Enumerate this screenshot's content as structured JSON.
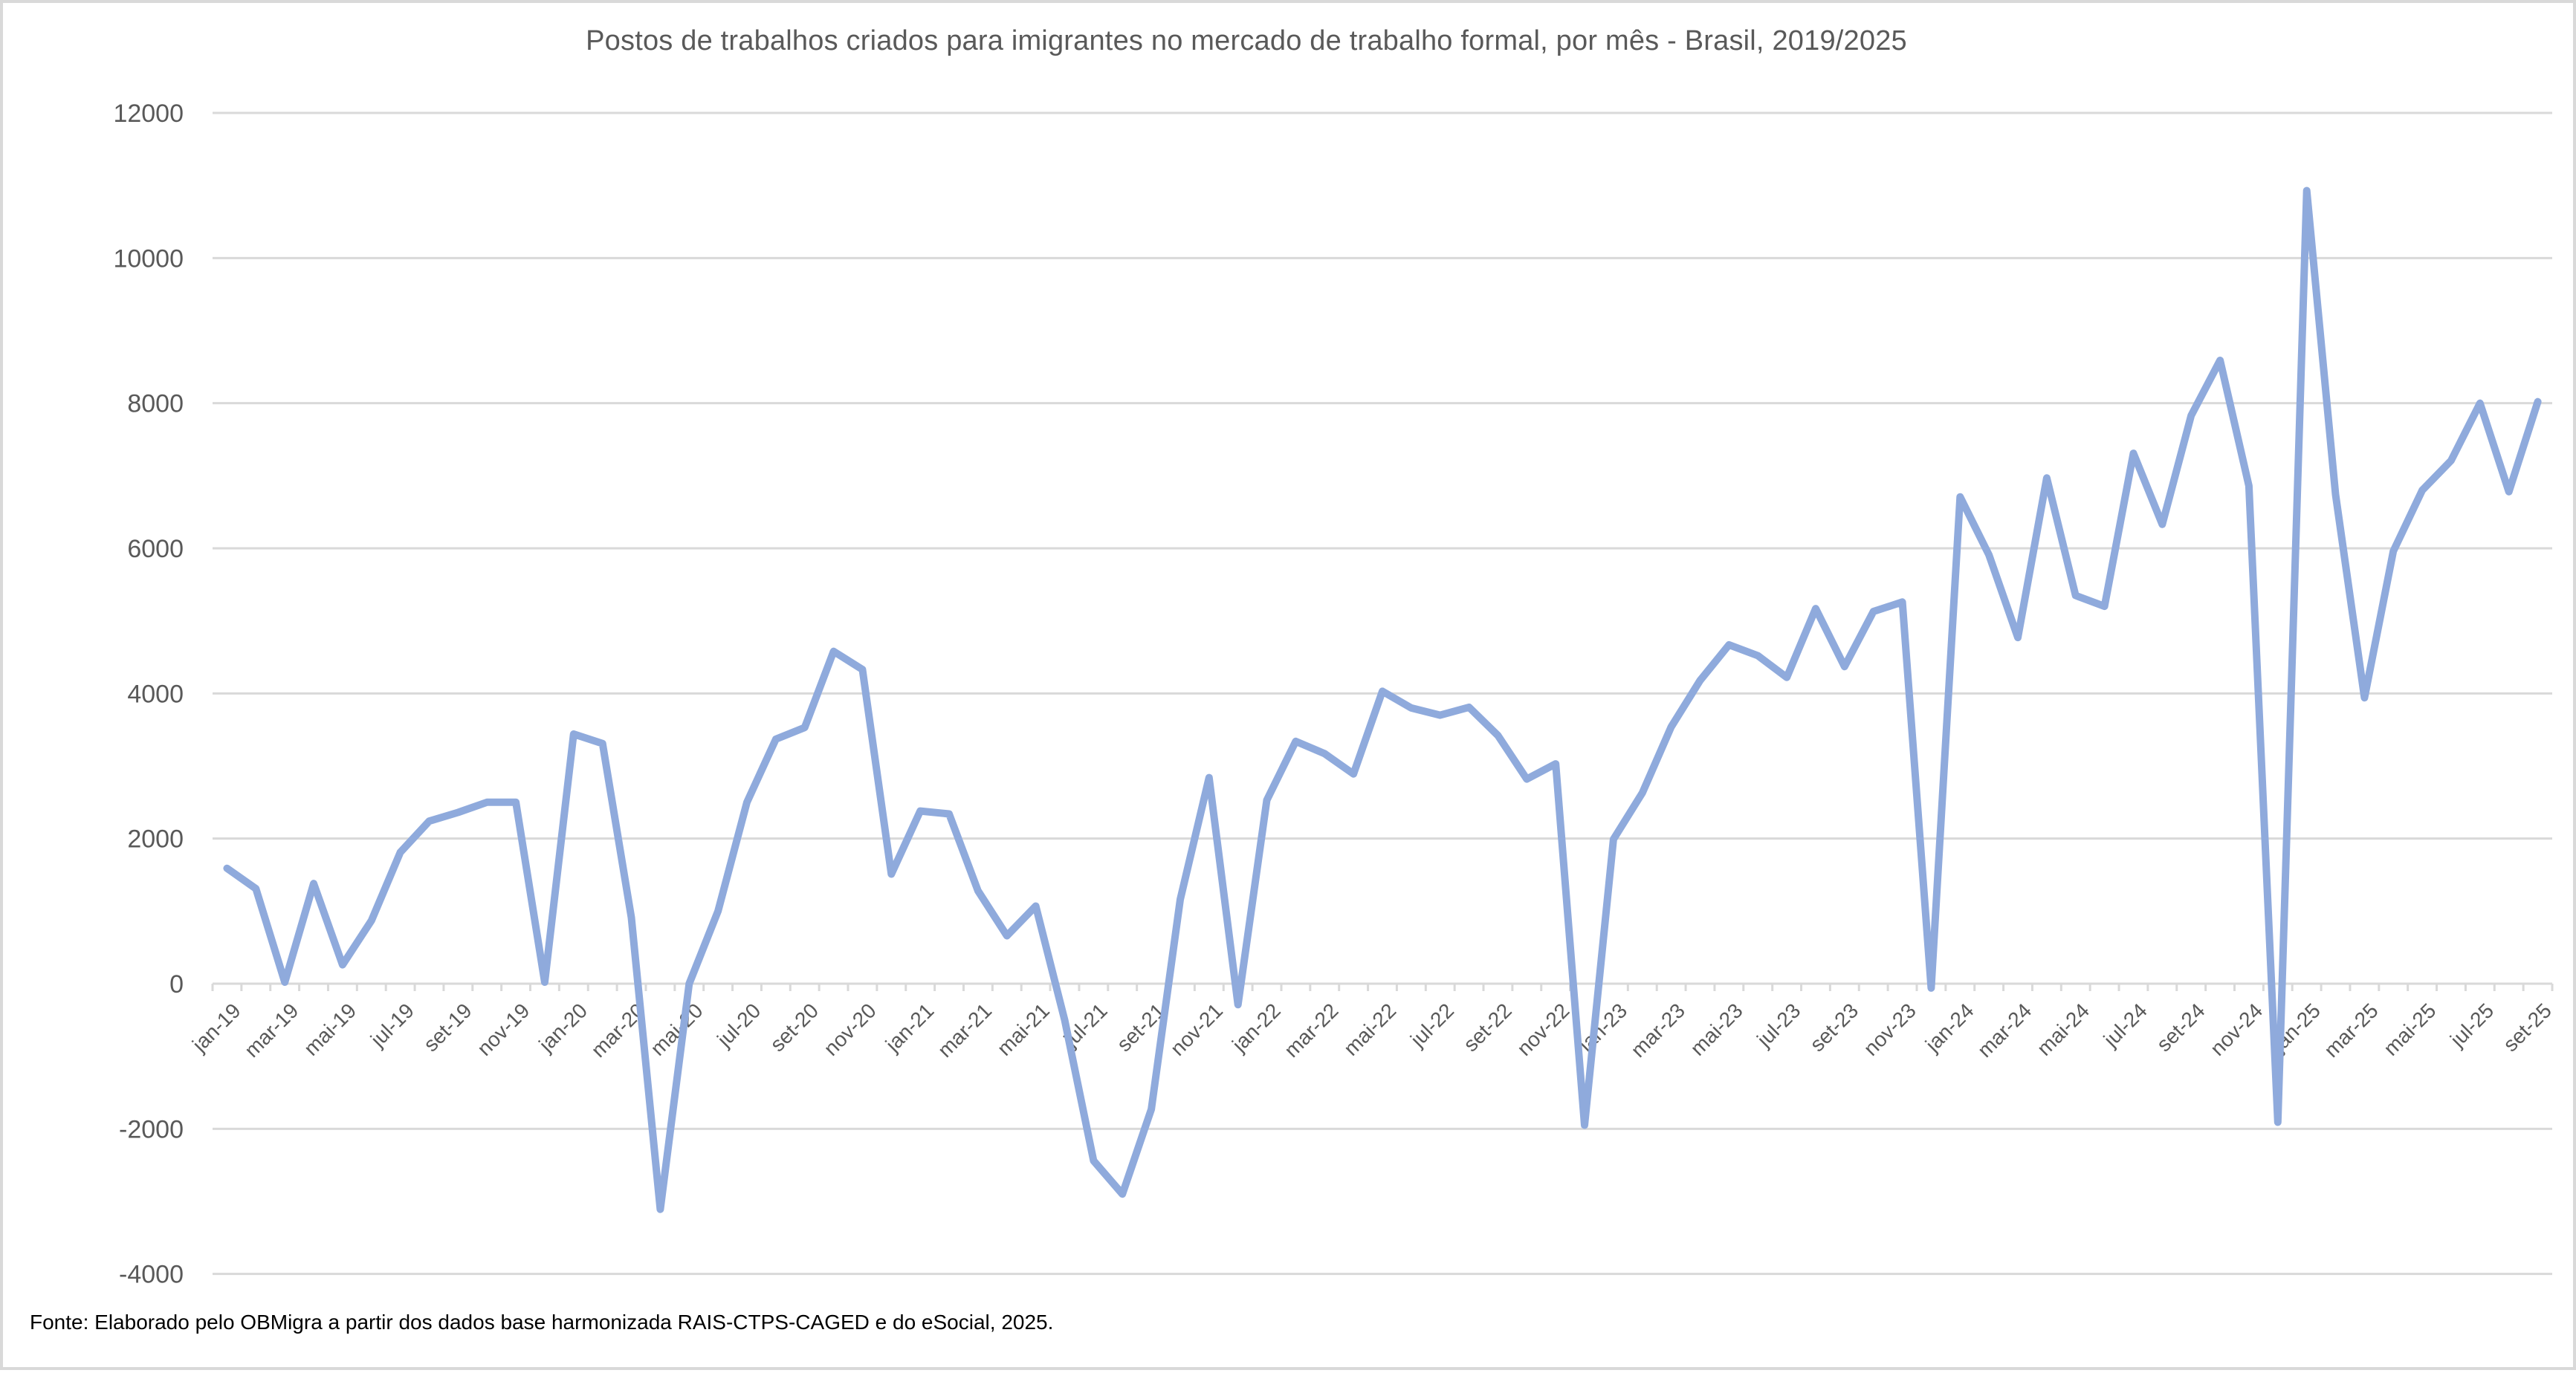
{
  "chart_data": {
    "type": "line",
    "title": "Postos de trabalhos criados para imigrantes no mercado de trabalho formal, por mês - Brasil, 2019/2025",
    "xlabel": "",
    "ylabel": "",
    "ylim": [
      -4000,
      12000
    ],
    "yticks": [
      12000,
      10000,
      8000,
      6000,
      4000,
      2000,
      0,
      -2000,
      -4000
    ],
    "grid": true,
    "legend": "none",
    "x_tick_labels_shown_every": 2,
    "categories": [
      "jan-19",
      "fev-19",
      "mar-19",
      "abr-19",
      "mai-19",
      "jun-19",
      "jul-19",
      "ago-19",
      "set-19",
      "out-19",
      "nov-19",
      "dez-19",
      "jan-20",
      "fev-20",
      "mar-20",
      "abr-20",
      "mai-20",
      "jun-20",
      "jul-20",
      "ago-20",
      "set-20",
      "out-20",
      "nov-20",
      "dez-20",
      "jan-21",
      "fev-21",
      "mar-21",
      "abr-21",
      "mai-21",
      "jun-21",
      "jul-21",
      "ago-21",
      "set-21",
      "out-21",
      "nov-21",
      "dez-21",
      "jan-22",
      "fev-22",
      "mar-22",
      "abr-22",
      "mai-22",
      "jun-22",
      "jul-22",
      "ago-22",
      "set-22",
      "out-22",
      "nov-22",
      "dez-22",
      "jan-23",
      "fev-23",
      "mar-23",
      "abr-23",
      "mai-23",
      "jun-23",
      "jul-23",
      "ago-23",
      "set-23",
      "out-23",
      "nov-23",
      "dez-23",
      "jan-24",
      "fev-24",
      "mar-24",
      "abr-24",
      "mai-24",
      "jun-24",
      "jul-24",
      "ago-24",
      "set-24",
      "out-24",
      "nov-24",
      "dez-24",
      "jan-25",
      "fev-25",
      "mar-25",
      "abr-25",
      "mai-25",
      "jun-25",
      "jul-25",
      "ago-25",
      "set-25"
    ],
    "series": [
      {
        "name": "Postos de trabalho criados",
        "color": "#8faadc",
        "values": [
          1590,
          1310,
          20,
          1380,
          260,
          870,
          1810,
          2240,
          2360,
          2500,
          2500,
          20,
          3440,
          3310,
          910,
          -3110,
          0,
          1000,
          2500,
          3370,
          3530,
          4580,
          4330,
          1510,
          2380,
          2340,
          1280,
          660,
          1070,
          -500,
          -2440,
          -2900,
          -1730,
          1160,
          2840,
          -290,
          2530,
          3340,
          3170,
          2890,
          4030,
          3800,
          3700,
          3810,
          3420,
          2820,
          3030,
          -1950,
          1990,
          2630,
          3540,
          4180,
          4670,
          4520,
          4220,
          5170,
          4370,
          5130,
          5260,
          -60,
          6710,
          5910,
          4770,
          6970,
          5350,
          5200,
          7310,
          6330,
          7830,
          8590,
          6860,
          -1910,
          10930,
          6740,
          3940,
          5960,
          6800,
          7210,
          8000,
          6780,
          8020
        ]
      }
    ]
  },
  "title": "Postos de trabalhos criados para imigrantes no mercado de trabalho formal, por mês - Brasil, 2019/2025",
  "source_note": "Fonte: Elaborado pelo OBMigra  a partir dos dados base harmonizada RAIS-CTPS-CAGED e do eSocial, 2025.",
  "colors": {
    "line": "#8faadc",
    "grid": "#d9d9d9",
    "axis_text": "#595959",
    "frame": "#d9d9d9"
  }
}
